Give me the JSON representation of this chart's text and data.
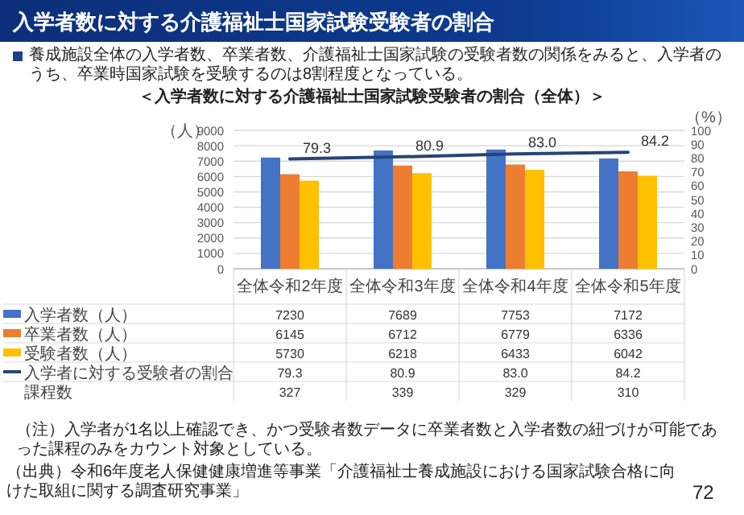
{
  "chart_data": {
    "type": "bar",
    "title": "入学者数に対する介護福祉士国家試験受験者の割合",
    "subtitle": "養成施設全体の入学者数、卒業者数、介護福祉士国家試験の受験者数の関係をみると、入学者のうち、卒業時国家試験を受験するのは8割程度となっている。",
    "ylabel": "（人）",
    "y2label": "（%）",
    "categories": [
      "全体令和2年度",
      "全体令和3年度",
      "全体令和4年度",
      "全体令和5年度"
    ],
    "series": [
      {
        "name": "入学者数（人）",
        "color": "#4472c4",
        "values": [
          7230,
          7689,
          7753,
          7172
        ]
      },
      {
        "name": "卒業者数（人）",
        "color": "#ed7d31",
        "values": [
          6145,
          6712,
          6779,
          6336
        ]
      },
      {
        "name": "受験者数（人）",
        "color": "#ffc000",
        "values": [
          5730,
          6218,
          6433,
          6042
        ]
      },
      {
        "name": "入学者に対する受験者の割合",
        "type": "line",
        "axis": "y2",
        "color": "#264478",
        "values": [
          79.3,
          80.9,
          83.0,
          84.2
        ],
        "value_labels": [
          "79.3",
          "80.9",
          "83.0",
          "84.2"
        ]
      }
    ],
    "ylim": [
      0,
      9000
    ],
    "yticks": [
      0,
      1000,
      2000,
      3000,
      4000,
      5000,
      6000,
      7000,
      8000,
      9000
    ],
    "y2lim": [
      0,
      100
    ],
    "y2ticks": [
      0,
      10,
      20,
      30,
      40,
      50,
      60,
      70,
      80,
      90,
      100
    ],
    "grid": "y",
    "legend": "bottom",
    "data_labels": true,
    "annotations": [
      "＜入学者数に対する介護福祉士国家試験受験者の割合（全体）＞",
      "（注）入学者が1名以上確認でき、かつ受験者数データに卒業者数と入学者数の紐づけが可能であった課程のみをカウント対象としている。",
      "（出典）令和6年度老人保健健康増進等事業「介護福祉士養成施設における国家試験合格に向けた取組に関する調査研究事業」",
      "72",
      "課程数",
      "327",
      "339",
      "329",
      "310",
      "79.3",
      "80.9",
      "83.0",
      "84.2"
    ]
  }
}
